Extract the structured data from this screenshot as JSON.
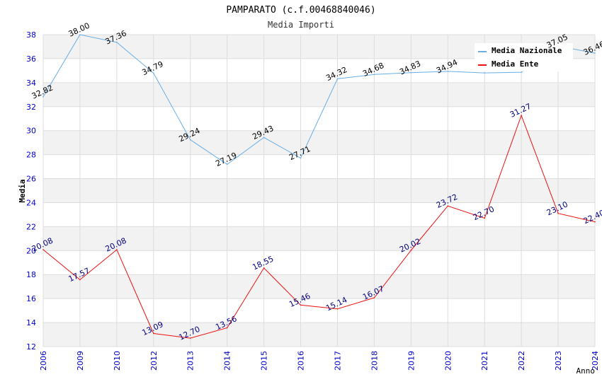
{
  "chart_data": {
    "type": "line",
    "title": "PAMPARATO (c.f.00468840046)",
    "subtitle": "Media Importi",
    "xlabel": "Anno",
    "ylabel": "Media",
    "ylim": [
      12,
      38
    ],
    "y_ticks": [
      "12",
      "14",
      "16",
      "18",
      "20",
      "22",
      "24",
      "26",
      "28",
      "30",
      "32",
      "34",
      "36",
      "38"
    ],
    "categories": [
      "2006",
      "2009",
      "2010",
      "2012",
      "2013",
      "2014",
      "2015",
      "2016",
      "2017",
      "2018",
      "2019",
      "2020",
      "2021",
      "2022",
      "2023",
      "2024"
    ],
    "legend_position": "top-right",
    "series": [
      {
        "name": "Media Nazionale",
        "color": "#6aaee6",
        "label_color": "#000000",
        "values": [
          32.82,
          38.0,
          37.36,
          34.79,
          29.24,
          27.19,
          29.43,
          27.71,
          34.32,
          34.68,
          34.83,
          34.94,
          34.81,
          34.87,
          37.05,
          36.46
        ],
        "labels": [
          "32.82",
          "38.00",
          "37.36",
          "34.79",
          "29.24",
          "27.19",
          "29.43",
          "27.71",
          "34.32",
          "34.68",
          "34.83",
          "34.94",
          "",
          "",
          "37.05",
          "36.46"
        ]
      },
      {
        "name": "Media Ente",
        "color": "#ee1111",
        "label_color": "#000080",
        "values": [
          20.08,
          17.57,
          20.08,
          13.09,
          12.7,
          13.56,
          18.55,
          15.46,
          15.14,
          16.07,
          20.02,
          23.72,
          22.7,
          31.27,
          23.1,
          22.4
        ],
        "labels": [
          "20.08",
          "17.57",
          "20.08",
          "13.09",
          "12.70",
          "13.56",
          "18.55",
          "15.46",
          "15.14",
          "16.07",
          "20.02",
          "23.72",
          "22.70",
          "31.27",
          "23.10",
          "22.40"
        ]
      }
    ],
    "colors": {
      "axis_tick_text": "#0000cc",
      "band": "#f2f2f2",
      "grid": "#dddddd",
      "title": "#000000"
    }
  }
}
